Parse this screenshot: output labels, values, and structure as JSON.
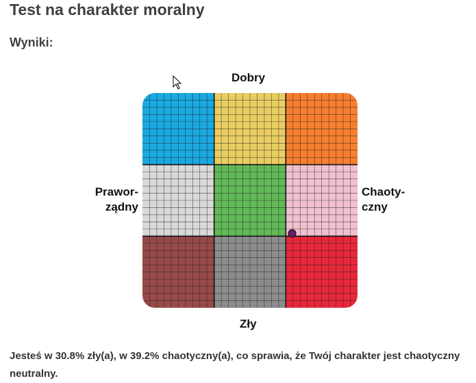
{
  "page": {
    "title": "Test na charakter moralny",
    "results_heading": "Wyniki:",
    "result_text": "Jesteś w 30.8% zły(a), w 39.2% chaotyczny(a), co sprawia, że Twój charakter jest chaotyczny neutralny."
  },
  "chart_data": {
    "type": "scatter",
    "axes": {
      "top": "Dobry",
      "bottom": "Zły",
      "left": [
        "Prawor-",
        "ządny"
      ],
      "right": [
        "Chaoty-",
        "czny"
      ]
    },
    "quadrant_colors": [
      [
        "#1aa9e1",
        "#eacd62",
        "#f77f2f"
      ],
      [
        "#d9d9d9",
        "#62b957",
        "#f2c0cf"
      ],
      [
        "#974a48",
        "#8c8c8c",
        "#e8283a"
      ]
    ],
    "grid": true,
    "point": {
      "chaotic_pct": 39.2,
      "evil_pct": 30.8,
      "color": "#6b1b6b"
    },
    "x_range": [
      -100,
      100
    ],
    "y_range": [
      -100,
      100
    ]
  }
}
